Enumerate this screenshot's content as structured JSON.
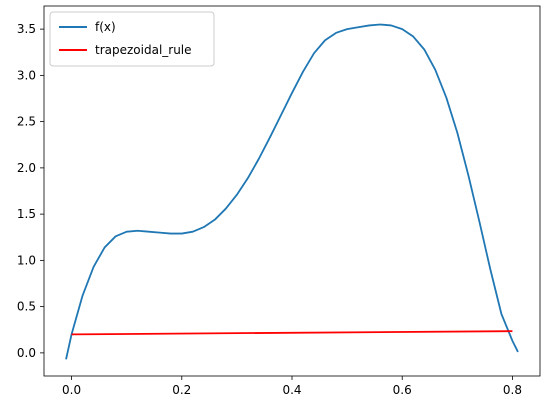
{
  "chart_data": {
    "type": "line",
    "title": "",
    "xlabel": "",
    "ylabel": "",
    "xlim": [
      -0.05,
      0.85
    ],
    "ylim": [
      -0.25,
      3.75
    ],
    "xticks": [
      0.0,
      0.2,
      0.4,
      0.6,
      0.8
    ],
    "xtick_labels": [
      "0.0",
      "0.2",
      "0.4",
      "0.6",
      "0.8"
    ],
    "yticks": [
      0.0,
      0.5,
      1.0,
      1.5,
      2.0,
      2.5,
      3.0,
      3.5
    ],
    "ytick_labels": [
      "0.0",
      "0.5",
      "1.0",
      "1.5",
      "2.0",
      "2.5",
      "3.0",
      "3.5"
    ],
    "grid": false,
    "legend": {
      "placement": "top-left",
      "entries": [
        "f(x)",
        "trapezoidal_rule"
      ]
    },
    "series": [
      {
        "name": "f(x)",
        "color": "#1f77b4",
        "x": [
          -0.01,
          0.0,
          0.02,
          0.04,
          0.06,
          0.08,
          0.1,
          0.12,
          0.14,
          0.16,
          0.18,
          0.2,
          0.22,
          0.24,
          0.26,
          0.28,
          0.3,
          0.32,
          0.34,
          0.36,
          0.38,
          0.4,
          0.42,
          0.44,
          0.46,
          0.48,
          0.5,
          0.52,
          0.54,
          0.56,
          0.58,
          0.6,
          0.62,
          0.64,
          0.66,
          0.68,
          0.7,
          0.72,
          0.74,
          0.76,
          0.78,
          0.8,
          0.81
        ],
        "y": [
          -0.07,
          0.2,
          0.62,
          0.93,
          1.14,
          1.26,
          1.31,
          1.32,
          1.31,
          1.3,
          1.29,
          1.29,
          1.31,
          1.36,
          1.44,
          1.56,
          1.71,
          1.89,
          2.1,
          2.33,
          2.57,
          2.81,
          3.04,
          3.24,
          3.38,
          3.46,
          3.5,
          3.52,
          3.54,
          3.55,
          3.54,
          3.5,
          3.42,
          3.28,
          3.06,
          2.76,
          2.38,
          1.92,
          1.42,
          0.9,
          0.42,
          0.13,
          0.01
        ]
      },
      {
        "name": "trapezoidal_rule",
        "color": "#ff0000",
        "x": [
          0.0,
          0.8
        ],
        "y": [
          0.2,
          0.235
        ]
      }
    ]
  }
}
